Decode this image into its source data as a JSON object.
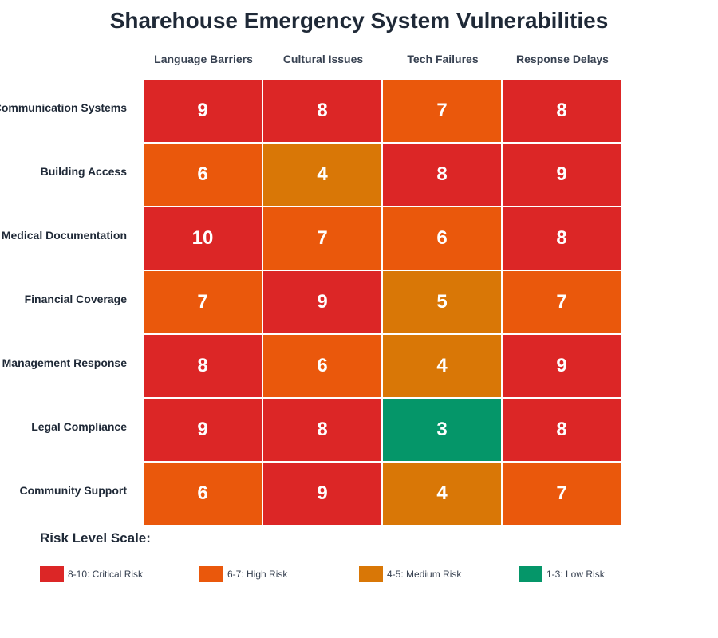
{
  "chart_data": {
    "type": "heatmap",
    "title": "Sharehouse Emergency System Vulnerabilities",
    "columns": [
      "Language Barriers",
      "Cultural Issues",
      "Tech Failures",
      "Response Delays"
    ],
    "rows": [
      "Communication Systems",
      "Building Access",
      "Medical Documentation",
      "Financial Coverage",
      "Management Response",
      "Legal Compliance",
      "Community Support"
    ],
    "values": [
      [
        9,
        8,
        7,
        8
      ],
      [
        6,
        4,
        8,
        9
      ],
      [
        10,
        7,
        6,
        8
      ],
      [
        7,
        9,
        5,
        7
      ],
      [
        8,
        6,
        4,
        9
      ],
      [
        9,
        8,
        3,
        8
      ],
      [
        6,
        9,
        4,
        7
      ]
    ],
    "legend": {
      "title": "Risk Level Scale:",
      "items": [
        {
          "label": "8-10: Critical Risk",
          "min": 8,
          "max": 10,
          "color": "#dc2626"
        },
        {
          "label": "6-7: High Risk",
          "min": 6,
          "max": 7,
          "color": "#ea580c"
        },
        {
          "label": "4-5: Medium Risk",
          "min": 4,
          "max": 5,
          "color": "#d97706"
        },
        {
          "label": "1-3: Low Risk",
          "min": 1,
          "max": 3,
          "color": "#059669"
        }
      ]
    }
  }
}
